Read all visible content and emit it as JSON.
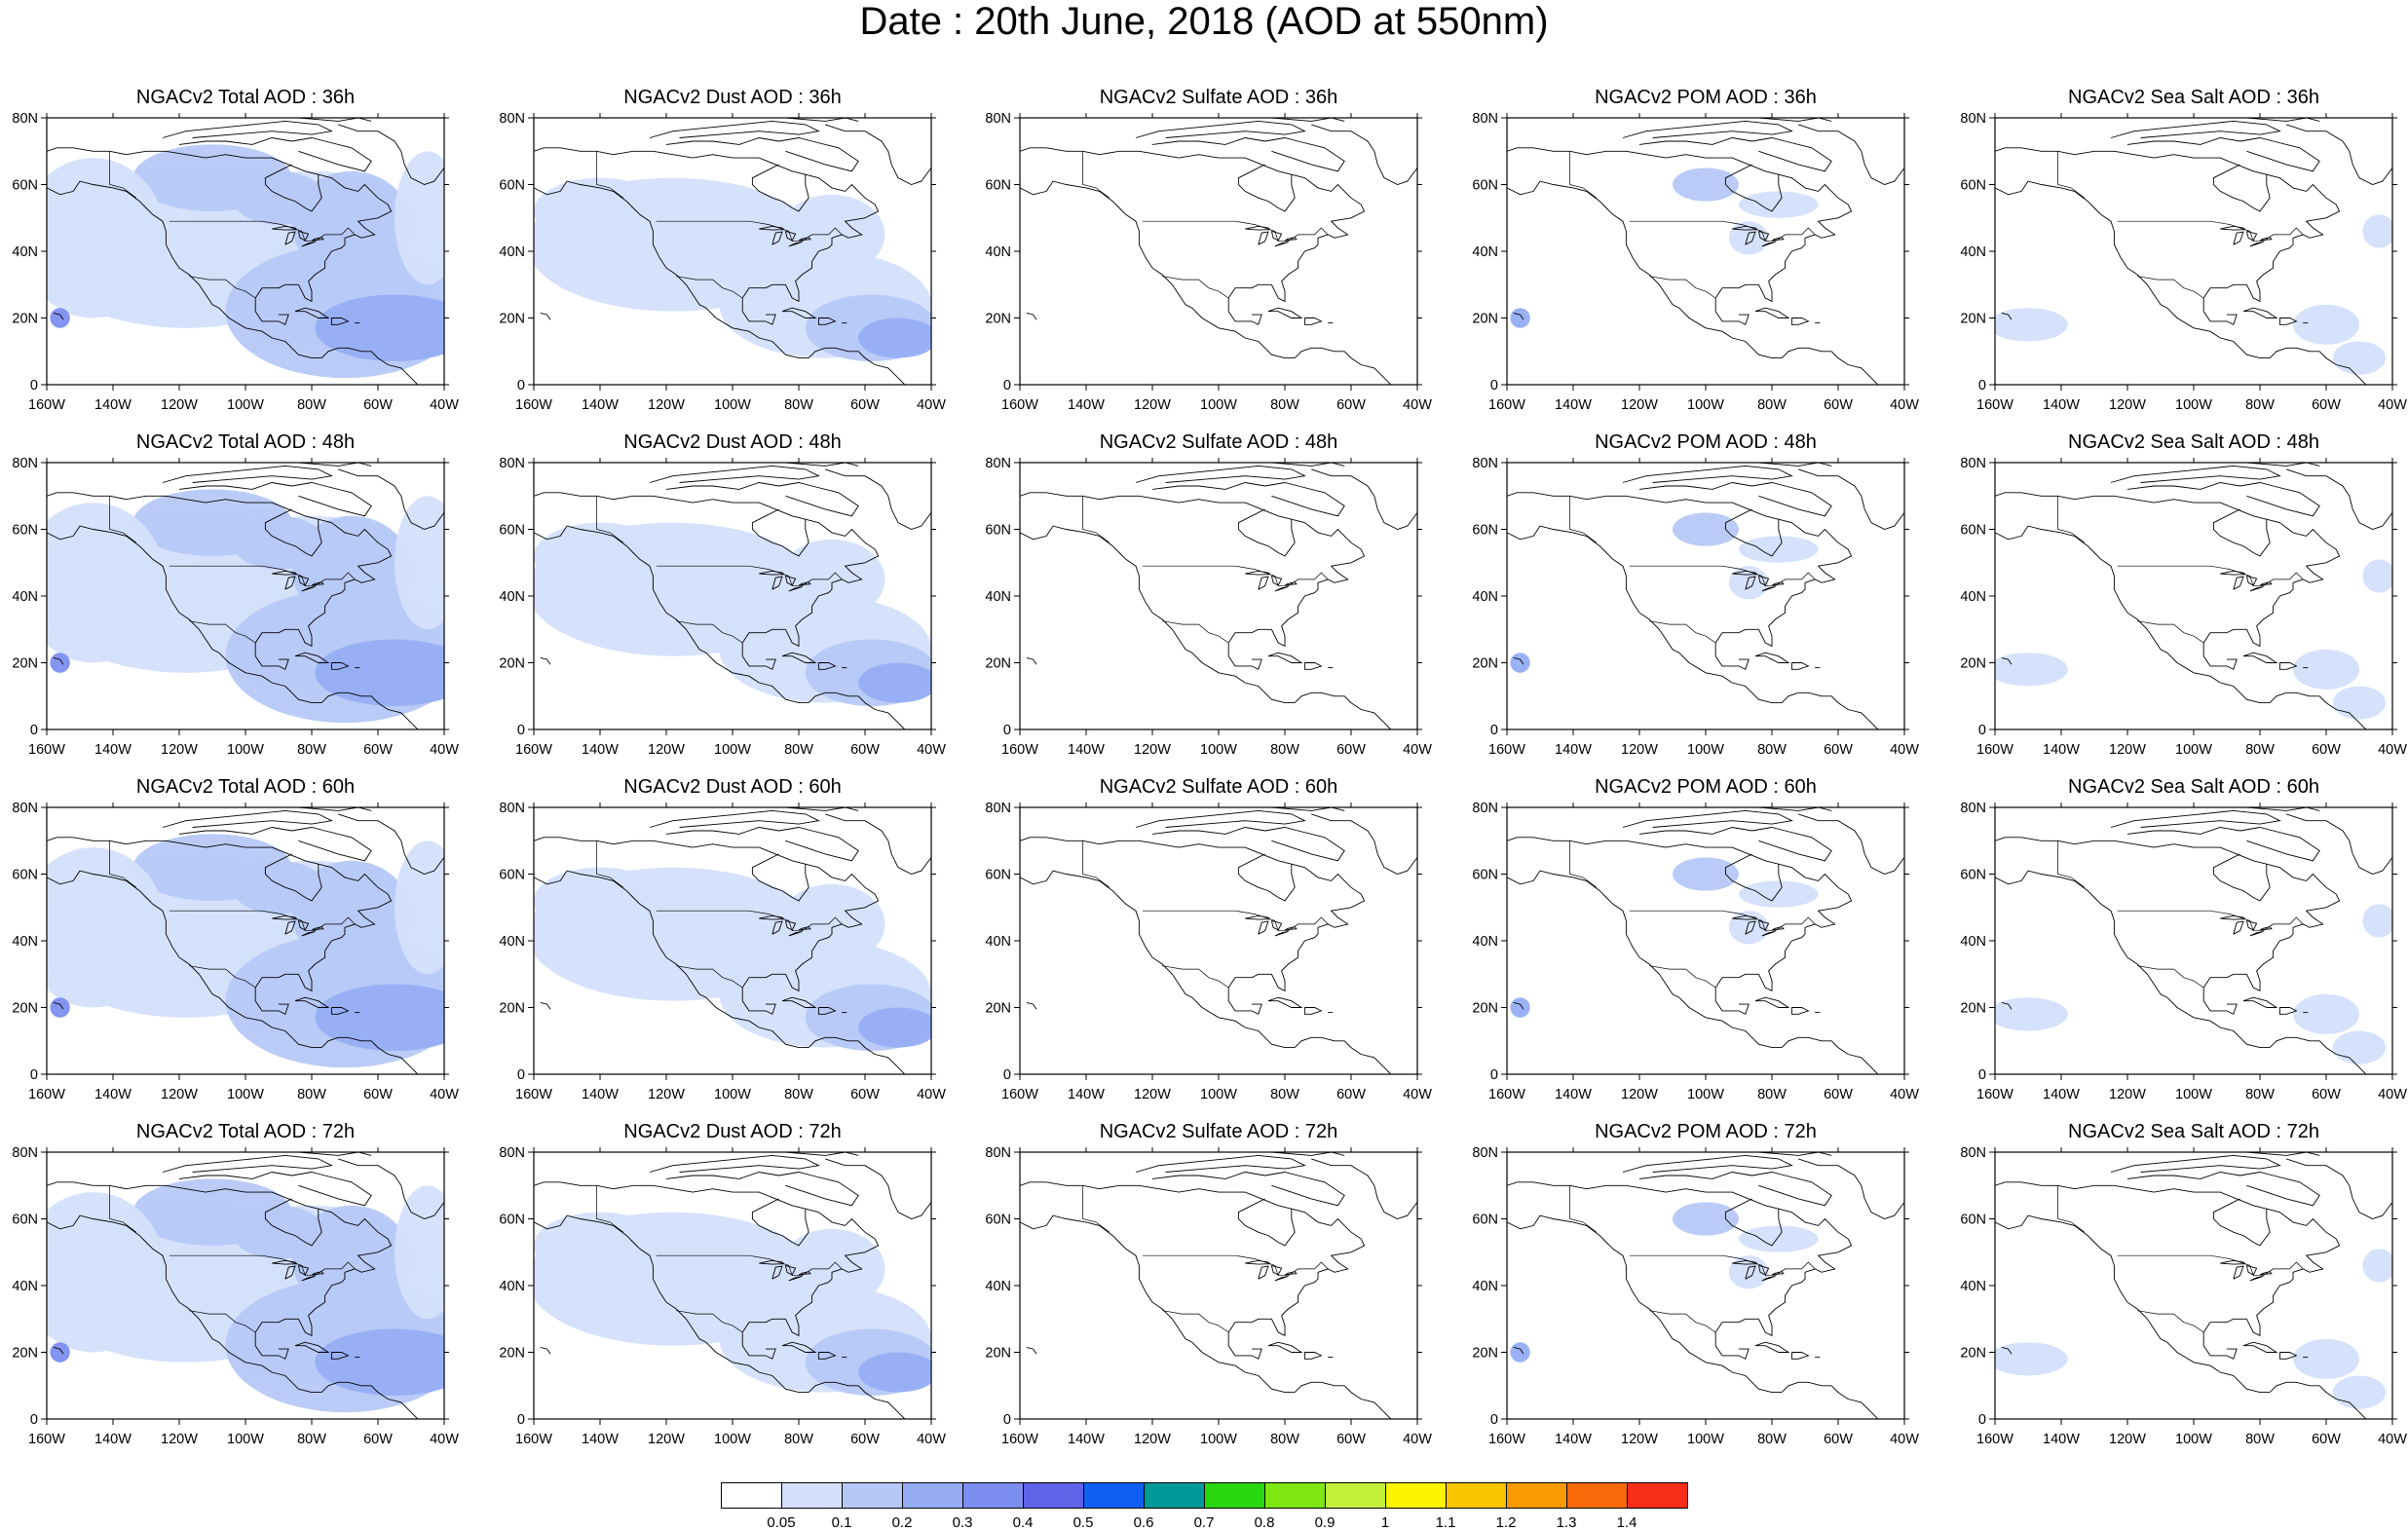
{
  "title": "Date : 20th June, 2018 (AOD at 550nm)",
  "axes": {
    "x_ticks": [
      "160W",
      "140W",
      "120W",
      "100W",
      "80W",
      "60W",
      "40W"
    ],
    "y_ticks": [
      "0",
      "20N",
      "40N",
      "60N",
      "80N"
    ],
    "lon_range": [
      -160,
      -40
    ],
    "lat_range": [
      0,
      80
    ]
  },
  "panels": [
    [
      {
        "title": "NGACv2 Total AOD : 36h",
        "kind": "total"
      },
      {
        "title": "NGACv2 Dust AOD : 36h",
        "kind": "dust"
      },
      {
        "title": "NGACv2 Sulfate AOD : 36h",
        "kind": "sulfate"
      },
      {
        "title": "NGACv2 POM AOD : 36h",
        "kind": "pom"
      },
      {
        "title": "NGACv2 Sea Salt AOD : 36h",
        "kind": "seasalt"
      }
    ],
    [
      {
        "title": "NGACv2 Total AOD : 48h",
        "kind": "total"
      },
      {
        "title": "NGACv2 Dust AOD : 48h",
        "kind": "dust"
      },
      {
        "title": "NGACv2 Sulfate AOD : 48h",
        "kind": "sulfate"
      },
      {
        "title": "NGACv2 POM AOD : 48h",
        "kind": "pom"
      },
      {
        "title": "NGACv2 Sea Salt AOD : 48h",
        "kind": "seasalt"
      }
    ],
    [
      {
        "title": "NGACv2 Total AOD : 60h",
        "kind": "total"
      },
      {
        "title": "NGACv2 Dust AOD : 60h",
        "kind": "dust"
      },
      {
        "title": "NGACv2 Sulfate AOD : 60h",
        "kind": "sulfate"
      },
      {
        "title": "NGACv2 POM AOD : 60h",
        "kind": "pom"
      },
      {
        "title": "NGACv2 Sea Salt AOD : 60h",
        "kind": "seasalt"
      }
    ],
    [
      {
        "title": "NGACv2 Total AOD : 72h",
        "kind": "total"
      },
      {
        "title": "NGACv2 Dust AOD : 72h",
        "kind": "dust"
      },
      {
        "title": "NGACv2 Sulfate AOD : 72h",
        "kind": "sulfate"
      },
      {
        "title": "NGACv2 POM AOD : 72h",
        "kind": "pom"
      },
      {
        "title": "NGACv2 Sea Salt  AOD : 72h",
        "kind": "seasalt"
      }
    ]
  ],
  "colorbar": {
    "labels": [
      "0.05",
      "0.1",
      "0.2",
      "0.3",
      "0.4",
      "0.5",
      "0.6",
      "0.7",
      "0.8",
      "0.9",
      "1",
      "1.1",
      "1.2",
      "1.3",
      "1.4"
    ],
    "colors": [
      "#ffffff",
      "#d4e0fb",
      "#b6c8f7",
      "#96adf5",
      "#7c8ef0",
      "#5e63e8",
      "#0f5ff2",
      "#00999a",
      "#28d710",
      "#7ee610",
      "#c4f03c",
      "#fbf500",
      "#f9c400",
      "#f99a00",
      "#f86a0a",
      "#f82d1a"
    ]
  }
}
